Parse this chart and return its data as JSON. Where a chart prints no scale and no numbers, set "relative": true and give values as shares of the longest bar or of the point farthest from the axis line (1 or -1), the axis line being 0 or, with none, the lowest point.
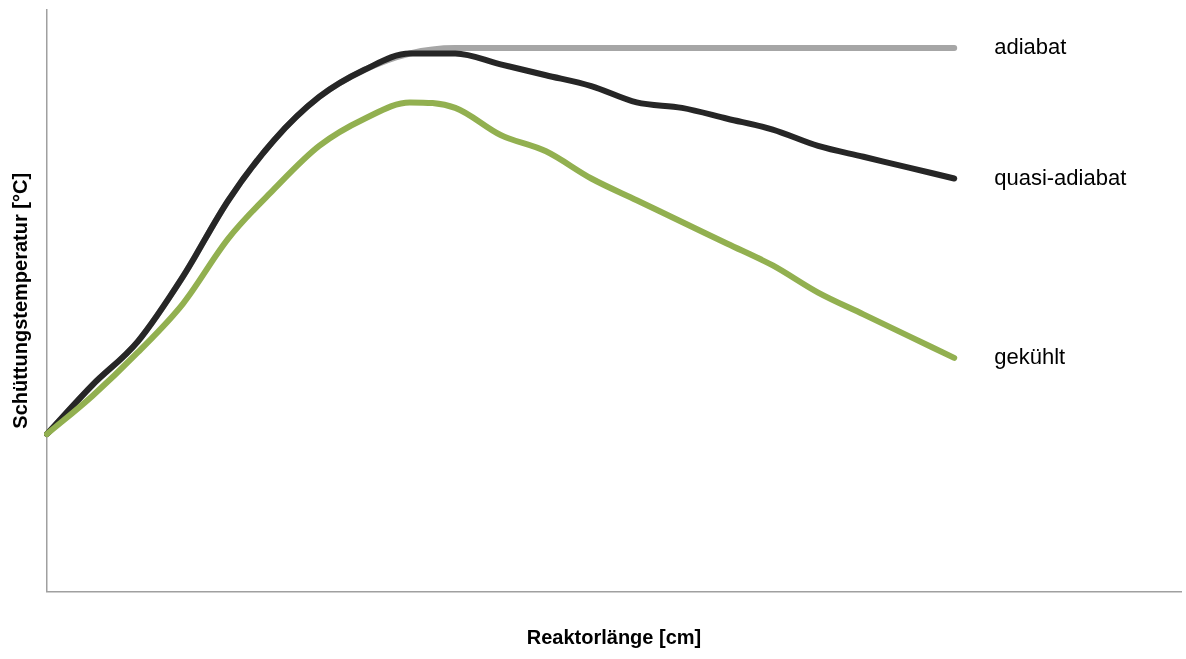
{
  "chart_data": {
    "type": "line",
    "relative": true,
    "xlabel": "Reaktorlänge [cm]",
    "ylabel": "Schüttungstemperatur [°C]",
    "grid": false,
    "legend": false,
    "marker": "none",
    "line_style": "solid",
    "categories": [
      null,
      null,
      null,
      null,
      null,
      null,
      null,
      null,
      null,
      null,
      null,
      null,
      null,
      null,
      null,
      null,
      null,
      null,
      null,
      null,
      null,
      null,
      null,
      null,
      null,
      null
    ],
    "series": [
      {
        "name": "adiabat",
        "color": "#a6a6a6",
        "values": [
          0.29,
          0.38,
          0.46,
          0.58,
          0.72,
          0.83,
          0.91,
          0.96,
          0.99,
          1,
          1,
          1,
          1,
          1,
          1,
          1,
          1,
          1,
          1,
          1,
          1,
          null,
          null,
          null,
          null,
          null
        ]
      },
      {
        "name": "quasi-adiabat",
        "color": "#262626",
        "values": [
          0.29,
          0.38,
          0.46,
          0.58,
          0.72,
          0.83,
          0.91,
          0.96,
          0.99,
          0.99,
          0.97,
          0.95,
          0.93,
          0.9,
          0.89,
          0.87,
          0.85,
          0.82,
          0.8,
          0.78,
          0.76,
          null,
          null,
          null,
          null,
          null
        ]
      },
      {
        "name": "gekühlt",
        "color": "#92b050",
        "values": [
          0.29,
          0.36,
          0.44,
          0.53,
          0.65,
          0.74,
          0.82,
          0.87,
          0.9,
          0.89,
          0.84,
          0.81,
          0.76,
          0.72,
          0.68,
          0.64,
          0.6,
          0.55,
          0.51,
          0.47,
          0.43,
          null,
          null,
          null,
          null,
          null
        ]
      }
    ]
  }
}
